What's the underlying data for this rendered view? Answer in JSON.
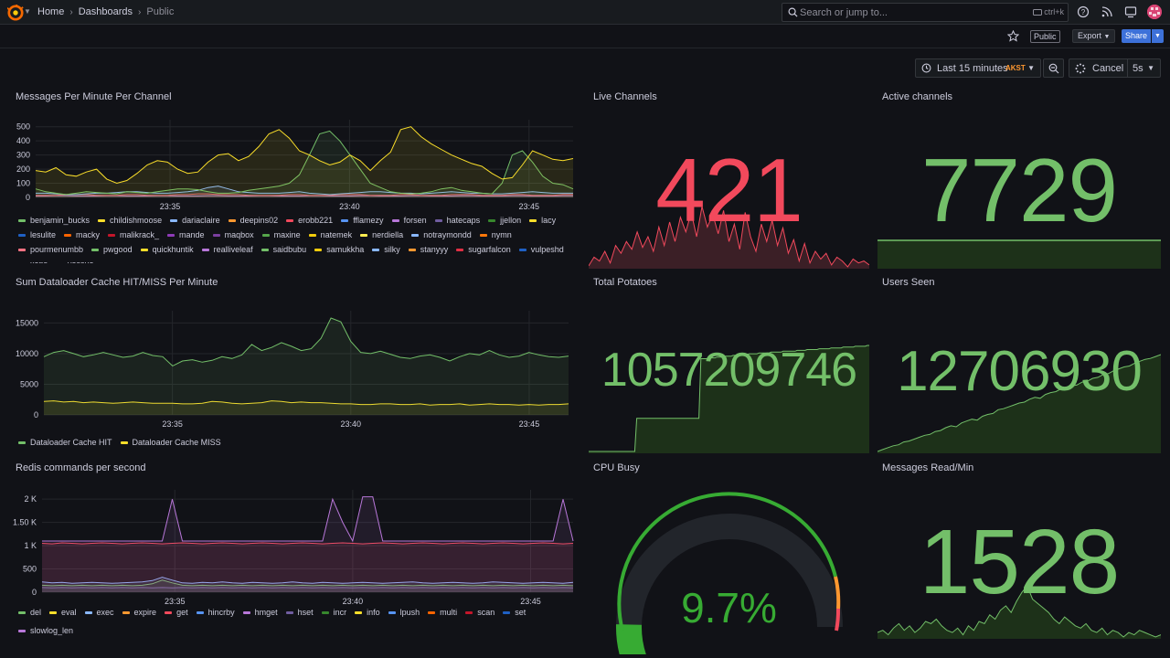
{
  "nav": {
    "breadcrumbs": [
      "Home",
      "Dashboards",
      "Public"
    ],
    "search_placeholder": "Search or jump to...",
    "search_shortcut": "ctrl+k"
  },
  "toolbar": {
    "public_badge": "Public",
    "export_label": "Export",
    "share_label": "Share"
  },
  "time": {
    "range_label": "Last 15 minutes",
    "timezone": "AKST",
    "cancel_label": "Cancel",
    "refresh_interval": "5s"
  },
  "panels": {
    "messages_per_minute": {
      "title": "Messages Per Minute Per Channel",
      "legend": [
        {
          "name": "benjamin_bucks",
          "color": "#73bf69"
        },
        {
          "name": "childishmoose",
          "color": "#fade2a"
        },
        {
          "name": "dariaclaire",
          "color": "#8ab8ff"
        },
        {
          "name": "deepins02",
          "color": "#ff9830"
        },
        {
          "name": "erobb221",
          "color": "#f2495c"
        },
        {
          "name": "fflamezy",
          "color": "#5794f2"
        },
        {
          "name": "forsen",
          "color": "#b877d9"
        },
        {
          "name": "hatecaps",
          "color": "#705da0"
        },
        {
          "name": "jjellon",
          "color": "#37872d"
        },
        {
          "name": "lacy",
          "color": "#fade2a"
        },
        {
          "name": "lesulite",
          "color": "#1f60c4"
        },
        {
          "name": "macky",
          "color": "#fa6400"
        },
        {
          "name": "malikrack_",
          "color": "#c4162a"
        },
        {
          "name": "mande",
          "color": "#8f3bb8"
        },
        {
          "name": "maqbox",
          "color": "#7b3fa0"
        },
        {
          "name": "maxine",
          "color": "#56a64b"
        },
        {
          "name": "natemek",
          "color": "#f2cc0c"
        },
        {
          "name": "nerdiella",
          "color": "#ffee52"
        },
        {
          "name": "notraymondd",
          "color": "#8ab8ff"
        },
        {
          "name": "nymn",
          "color": "#ff780a"
        },
        {
          "name": "pourmenumbb",
          "color": "#ff7383"
        },
        {
          "name": "pwgood",
          "color": "#73bf69"
        },
        {
          "name": "quickhuntik",
          "color": "#fade2a"
        },
        {
          "name": "realliveleaf",
          "color": "#b877d9"
        },
        {
          "name": "saidbubu",
          "color": "#73bf69"
        },
        {
          "name": "samukkha",
          "color": "#f2cc0c"
        },
        {
          "name": "silky",
          "color": "#8ab8ff"
        },
        {
          "name": "stanyyy",
          "color": "#ff9830"
        },
        {
          "name": "sugarfalcon",
          "color": "#e02f44"
        },
        {
          "name": "vulpeshd",
          "color": "#1f60c4"
        },
        {
          "name": "xans",
          "color": "#8f3bb8"
        },
        {
          "name": "yassuo",
          "color": "#705da0"
        }
      ]
    },
    "live_channels": {
      "title": "Live Channels",
      "value": "421",
      "color": "#f2495c"
    },
    "active_channels": {
      "title": "Active channels",
      "value": "7729",
      "color": "#73bf69"
    },
    "dataloader": {
      "title": "Sum Dataloader Cache HIT/MISS Per Minute",
      "legend": [
        {
          "name": "Dataloader Cache HIT",
          "color": "#73bf69"
        },
        {
          "name": "Dataloader Cache MISS",
          "color": "#fade2a"
        }
      ]
    },
    "total_potatoes": {
      "title": "Total Potatoes",
      "value": "1057209746",
      "color": "#73bf69"
    },
    "users_seen": {
      "title": "Users Seen",
      "value": "12706930",
      "color": "#73bf69"
    },
    "redis": {
      "title": "Redis commands per second",
      "legend": [
        {
          "name": "del",
          "color": "#73bf69"
        },
        {
          "name": "eval",
          "color": "#fade2a"
        },
        {
          "name": "exec",
          "color": "#8ab8ff"
        },
        {
          "name": "expire",
          "color": "#ff9830"
        },
        {
          "name": "get",
          "color": "#f2495c"
        },
        {
          "name": "hincrby",
          "color": "#5794f2"
        },
        {
          "name": "hmget",
          "color": "#b877d9"
        },
        {
          "name": "hset",
          "color": "#705da0"
        },
        {
          "name": "incr",
          "color": "#37872d"
        },
        {
          "name": "info",
          "color": "#fade2a"
        },
        {
          "name": "lpush",
          "color": "#5794f2"
        },
        {
          "name": "multi",
          "color": "#fa6400"
        },
        {
          "name": "scan",
          "color": "#c4162a"
        },
        {
          "name": "set",
          "color": "#1f60c4"
        },
        {
          "name": "slowlog_len",
          "color": "#b877d9"
        }
      ]
    },
    "cpu_busy": {
      "title": "CPU Busy",
      "value": "9.7%",
      "percent": 9.7,
      "color": "#37ab33"
    },
    "messages_read": {
      "title": "Messages Read/Min",
      "value": "1528",
      "color": "#73bf69"
    }
  },
  "chart_data": [
    {
      "type": "line",
      "title": "Messages Per Minute Per Channel",
      "x_ticks": [
        "23:35",
        "23:40",
        "23:45"
      ],
      "y_ticks": [
        "0",
        "100",
        "200",
        "300",
        "400",
        "500"
      ],
      "ylim": [
        0,
        550
      ],
      "series": [
        {
          "name": "childishmoose",
          "color": "#fade2a",
          "values": [
            190,
            180,
            210,
            160,
            150,
            180,
            200,
            130,
            100,
            120,
            170,
            230,
            260,
            250,
            200,
            170,
            180,
            250,
            300,
            310,
            260,
            290,
            360,
            450,
            480,
            420,
            330,
            300,
            260,
            230,
            250,
            300,
            260,
            190,
            260,
            320,
            480,
            500,
            430,
            380,
            340,
            300,
            270,
            240,
            220,
            170,
            130,
            140,
            230,
            330,
            300,
            270,
            260,
            275
          ]
        },
        {
          "name": "benjamin_bucks",
          "color": "#73bf69",
          "values": [
            60,
            40,
            30,
            20,
            30,
            40,
            35,
            30,
            25,
            40,
            35,
            30,
            40,
            50,
            60,
            60,
            55,
            40,
            30,
            30,
            35,
            50,
            60,
            70,
            80,
            100,
            160,
            300,
            450,
            470,
            400,
            300,
            200,
            100,
            70,
            40,
            30,
            25,
            30,
            40,
            60,
            70,
            50,
            40,
            30,
            25,
            100,
            300,
            330,
            250,
            150,
            100,
            90,
            60
          ]
        },
        {
          "name": "dariaclaire",
          "color": "#8ab8ff",
          "values": [
            30,
            30,
            25,
            20,
            20,
            25,
            30,
            30,
            35,
            40,
            40,
            35,
            30,
            30,
            35,
            40,
            50,
            70,
            80,
            60,
            40,
            35,
            30,
            30,
            30,
            35,
            40,
            30,
            25,
            20,
            25,
            30,
            35,
            40,
            40,
            35,
            30,
            30,
            25,
            30,
            35,
            40,
            35,
            30,
            30,
            25,
            25,
            30,
            35,
            40,
            35,
            30,
            30,
            30
          ]
        },
        {
          "name": "erobb221",
          "color": "#f2495c",
          "values": [
            15,
            15,
            15,
            20,
            20,
            20,
            15,
            15,
            15,
            20,
            20,
            15,
            15,
            15,
            20,
            20,
            25,
            25,
            20,
            20,
            20,
            15,
            15,
            15,
            15,
            20,
            20,
            15,
            15,
            15,
            20,
            20,
            20,
            15,
            15,
            15,
            20,
            20,
            15,
            15,
            15,
            20,
            20,
            20,
            15,
            15,
            15,
            20,
            20,
            15,
            15,
            15,
            20,
            20
          ]
        },
        {
          "name": "forsen",
          "color": "#b877d9",
          "values": [
            10,
            10,
            12,
            12,
            10,
            10,
            10,
            12,
            12,
            10,
            10,
            10,
            12,
            12,
            10,
            10,
            10,
            12,
            12,
            10,
            10,
            10,
            12,
            12,
            10,
            10,
            10,
            12,
            12,
            10,
            10,
            10,
            12,
            12,
            10,
            10,
            10,
            12,
            12,
            10,
            10,
            10,
            12,
            12,
            10,
            10,
            10,
            12,
            12,
            10,
            10,
            10,
            12,
            12
          ]
        }
      ]
    },
    {
      "type": "line",
      "title": "Sum Dataloader Cache HIT/MISS Per Minute",
      "x_ticks": [
        "23:35",
        "23:40",
        "23:45"
      ],
      "y_ticks": [
        "0",
        "5000",
        "10000",
        "15000"
      ],
      "ylim": [
        0,
        17000
      ],
      "series": [
        {
          "name": "Dataloader Cache HIT",
          "color": "#73bf69",
          "values": [
            9500,
            10200,
            10500,
            10000,
            9500,
            9800,
            10200,
            9800,
            9400,
            9600,
            10200,
            9700,
            9500,
            8000,
            8800,
            9000,
            8600,
            8900,
            9500,
            9200,
            9800,
            11500,
            10500,
            11000,
            11800,
            11200,
            10500,
            10800,
            12500,
            15800,
            15200,
            12000,
            10200,
            10000,
            10400,
            9900,
            9400,
            9200,
            9600,
            9800,
            9400,
            8800,
            9500,
            10000,
            9800,
            10500,
            9800,
            9400,
            9600,
            10200,
            9800,
            9500,
            9400,
            9600
          ]
        },
        {
          "name": "Dataloader Cache MISS",
          "color": "#fade2a",
          "values": [
            2200,
            2300,
            2100,
            2200,
            2000,
            2100,
            2000,
            1900,
            2000,
            2100,
            2000,
            1900,
            1900,
            1900,
            1800,
            1800,
            1900,
            2200,
            2100,
            1900,
            1800,
            1900,
            2000,
            2300,
            2200,
            2000,
            2100,
            2000,
            2000,
            1900,
            1800,
            1800,
            1700,
            1700,
            1800,
            1800,
            1700,
            1700,
            1800,
            1600,
            1700,
            1700,
            1800,
            1600,
            1700,
            1800,
            1700,
            1700,
            1600,
            1700,
            1600,
            1700,
            1700,
            1800
          ]
        }
      ]
    },
    {
      "type": "line",
      "title": "Redis commands per second",
      "x_ticks": [
        "23:35",
        "23:40",
        "23:45"
      ],
      "y_ticks": [
        "0",
        "500",
        "1 K",
        "1.50 K",
        "2 K"
      ],
      "ylim": [
        0,
        2200
      ],
      "series": [
        {
          "name": "slowlog_len",
          "color": "#b877d9",
          "values": [
            1100,
            1100,
            1100,
            1100,
            1100,
            1100,
            1100,
            1100,
            1100,
            1100,
            1100,
            1100,
            1100,
            2000,
            1100,
            1100,
            1100,
            1100,
            1100,
            1100,
            1100,
            1100,
            1100,
            1100,
            1100,
            1100,
            1100,
            1100,
            1100,
            2000,
            1500,
            1100,
            2050,
            2050,
            1100,
            1100,
            1100,
            1100,
            1100,
            1100,
            1100,
            1100,
            1100,
            1100,
            1100,
            1100,
            1100,
            1100,
            1100,
            1100,
            1100,
            1100,
            2000,
            1100
          ]
        },
        {
          "name": "get",
          "color": "#f2495c",
          "values": [
            1050,
            1040,
            1060,
            1050,
            1040,
            1050,
            1060,
            1050,
            1040,
            1050,
            1060,
            1050,
            1040,
            1050,
            1060,
            1050,
            1040,
            1050,
            1060,
            1050,
            1040,
            1050,
            1060,
            1050,
            1040,
            1050,
            1060,
            1050,
            1040,
            1050,
            1060,
            1050,
            1040,
            1050,
            1060,
            1050,
            1040,
            1050,
            1060,
            1050,
            1040,
            1050,
            1060,
            1050,
            1040,
            1050,
            1060,
            1050,
            1040,
            1050,
            1060,
            1050,
            1040,
            1050
          ]
        },
        {
          "name": "exec",
          "color": "#8ab8ff",
          "values": [
            220,
            200,
            210,
            190,
            200,
            210,
            200,
            190,
            200,
            210,
            220,
            250,
            320,
            260,
            200,
            190,
            210,
            200,
            220,
            200,
            190,
            210,
            200,
            190,
            200,
            220,
            200,
            190,
            210,
            200,
            190,
            200,
            210,
            200,
            190,
            200,
            210,
            220,
            200,
            190,
            200,
            210,
            200,
            190,
            200,
            220,
            210,
            200,
            190,
            200,
            210,
            200,
            190,
            210
          ]
        },
        {
          "name": "del",
          "color": "#73bf69",
          "values": [
            150,
            140,
            150,
            140,
            150,
            140,
            150,
            140,
            150,
            140,
            150,
            180,
            260,
            200,
            150,
            140,
            150,
            140,
            150,
            140,
            150,
            140,
            150,
            140,
            150,
            140,
            150,
            140,
            150,
            140,
            150,
            140,
            150,
            140,
            150,
            140,
            150,
            140,
            150,
            140,
            150,
            140,
            150,
            140,
            150,
            140,
            150,
            140,
            150,
            140,
            150,
            140,
            150,
            140
          ]
        },
        {
          "name": "hset",
          "color": "#705da0",
          "values": [
            100,
            95,
            100,
            95,
            100,
            95,
            100,
            95,
            100,
            95,
            100,
            95,
            100,
            95,
            100,
            95,
            100,
            95,
            100,
            95,
            100,
            95,
            100,
            95,
            100,
            95,
            100,
            95,
            100,
            95,
            100,
            95,
            100,
            95,
            100,
            95,
            100,
            95,
            100,
            95,
            100,
            95,
            100,
            95,
            100,
            95,
            100,
            95,
            100,
            95,
            100,
            95,
            100,
            95
          ]
        }
      ]
    }
  ]
}
